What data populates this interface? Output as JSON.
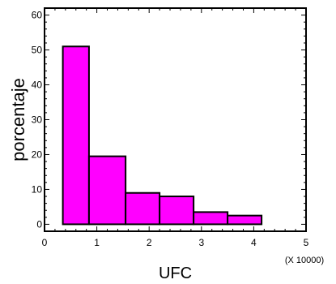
{
  "chart_data": {
    "type": "histogram",
    "title": "",
    "xlabel": "UFC",
    "ylabel": "porcentaje",
    "x_multiplier": "(X 10000)",
    "xlim": [
      0,
      5
    ],
    "ylim": [
      -2,
      62
    ],
    "x_ticks": [
      0,
      1,
      2,
      3,
      4,
      5
    ],
    "y_ticks": [
      0,
      10,
      20,
      30,
      40,
      50,
      60
    ],
    "bins": [
      {
        "x0": 0.35,
        "x1": 0.85,
        "value": 51
      },
      {
        "x0": 0.85,
        "x1": 1.55,
        "value": 19.5
      },
      {
        "x0": 1.55,
        "x1": 2.2,
        "value": 9
      },
      {
        "x0": 2.2,
        "x1": 2.85,
        "value": 8
      },
      {
        "x0": 2.85,
        "x1": 3.5,
        "value": 3.5
      },
      {
        "x0": 3.5,
        "x1": 4.15,
        "value": 2.5
      }
    ],
    "bar_color": "#ff00ff",
    "edge_color": "#000000",
    "grid": false,
    "legend": "none"
  }
}
